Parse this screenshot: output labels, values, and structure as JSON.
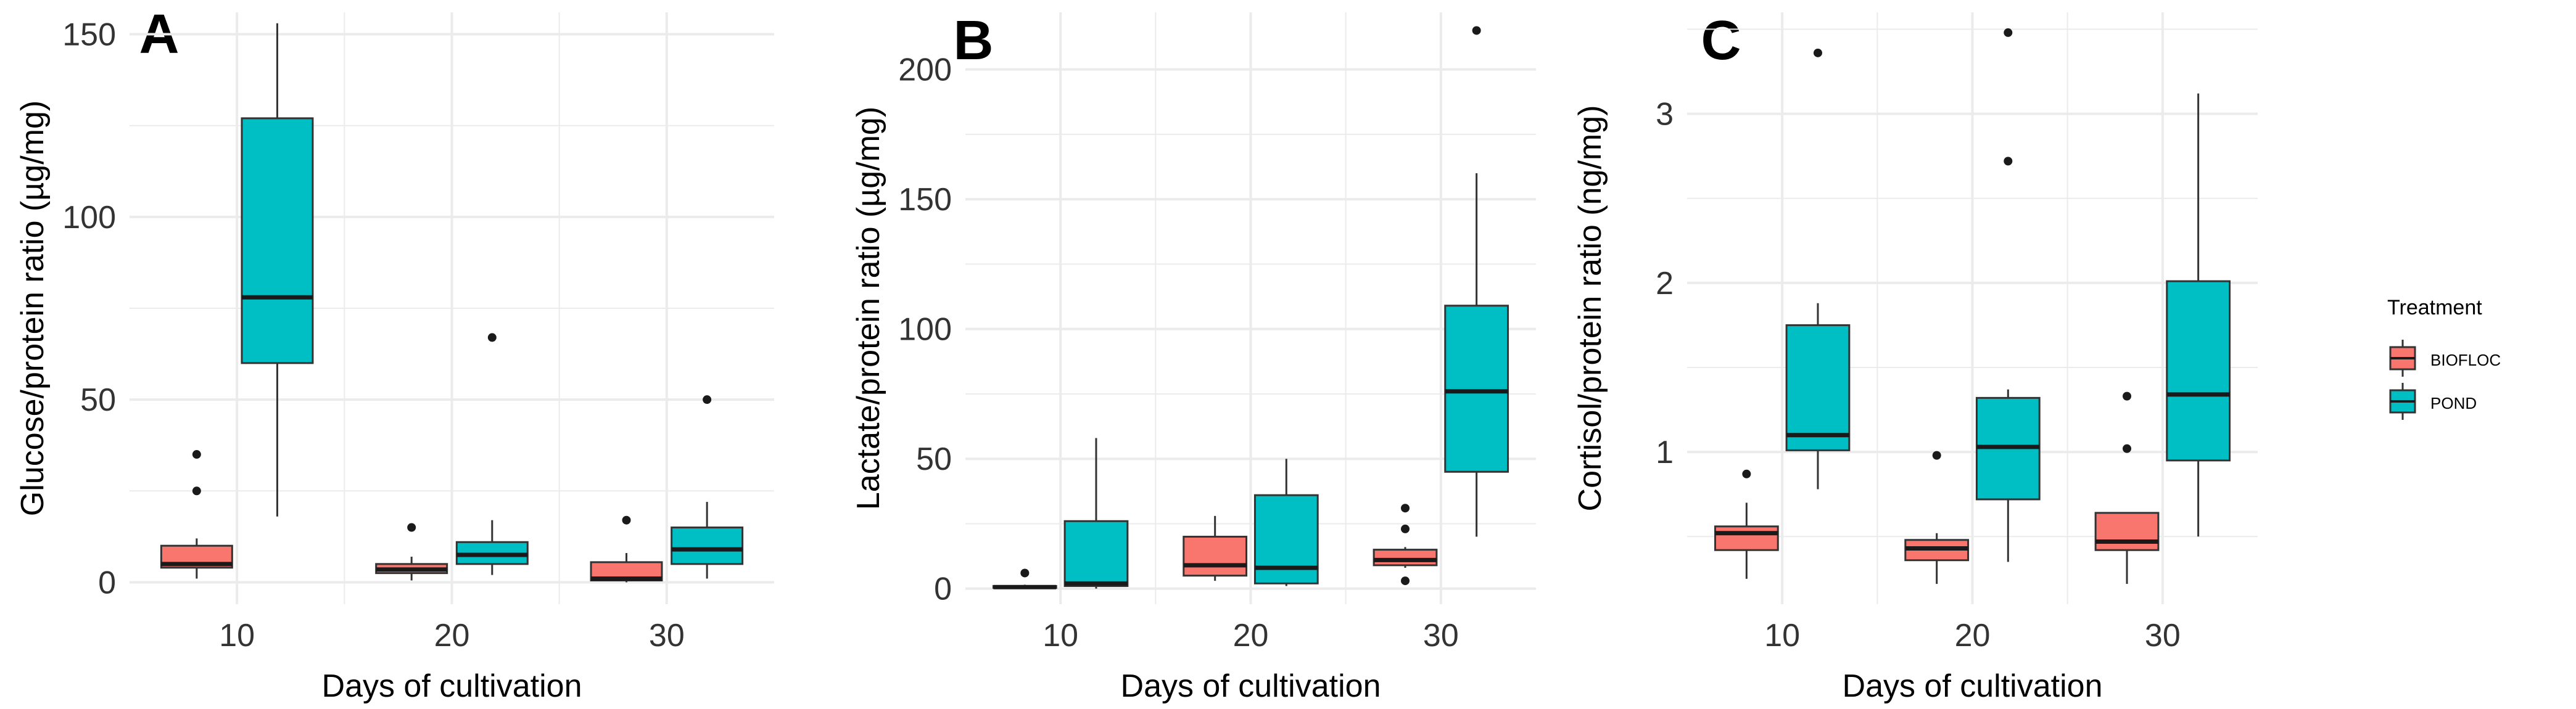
{
  "legend": {
    "title": "Treatment",
    "entries": [
      {
        "label": "BIOFLOC",
        "color": "#F8766D"
      },
      {
        "label": "POND",
        "color": "#00BFC4"
      }
    ],
    "placement": "right"
  },
  "colors": {
    "grid": "#EBEBEB",
    "median": "#1a1a1a",
    "whisker": "#333333"
  },
  "chart_data": [
    {
      "panel_label": "A",
      "type": "boxplot",
      "xlabel": "Days of cultivation",
      "ylabel": "Glucose/protein ratio (µg/mg)",
      "categories": [
        "10",
        "20",
        "30"
      ],
      "ylim": [
        -6,
        156
      ],
      "yticks": [
        0,
        50,
        100,
        150
      ],
      "series": [
        {
          "name": "BIOFLOC",
          "boxes": [
            {
              "whisker_low": 1,
              "q1": 4,
              "median": 5,
              "q3": 10,
              "whisker_high": 12,
              "outliers": [
                25,
                35
              ]
            },
            {
              "whisker_low": 0.5,
              "q1": 2.5,
              "median": 3.5,
              "q3": 5,
              "whisker_high": 7,
              "outliers": [
                15
              ]
            },
            {
              "whisker_low": 0,
              "q1": 0.5,
              "median": 1,
              "q3": 5.5,
              "whisker_high": 8,
              "outliers": [
                17
              ]
            }
          ]
        },
        {
          "name": "POND",
          "boxes": [
            {
              "whisker_low": 18,
              "q1": 60,
              "median": 78,
              "q3": 127,
              "whisker_high": 153,
              "outliers": []
            },
            {
              "whisker_low": 2,
              "q1": 5,
              "median": 7.5,
              "q3": 11,
              "whisker_high": 17,
              "outliers": [
                67
              ]
            },
            {
              "whisker_low": 1,
              "q1": 5,
              "median": 9,
              "q3": 15,
              "whisker_high": 22,
              "outliers": [
                50
              ]
            }
          ]
        }
      ]
    },
    {
      "panel_label": "B",
      "type": "boxplot",
      "xlabel": "Days of cultivation",
      "ylabel": "Lactate/protein ratio (µg/mg)",
      "categories": [
        "10",
        "20",
        "30"
      ],
      "ylim": [
        -6,
        222
      ],
      "yticks": [
        0,
        50,
        100,
        150,
        200
      ],
      "series": [
        {
          "name": "BIOFLOC",
          "boxes": [
            {
              "whisker_low": 0,
              "q1": 0.3,
              "median": 0.6,
              "q3": 1,
              "whisker_high": 1.5,
              "outliers": [
                6
              ]
            },
            {
              "whisker_low": 3,
              "q1": 5,
              "median": 9,
              "q3": 20,
              "whisker_high": 28,
              "outliers": []
            },
            {
              "whisker_low": 8,
              "q1": 9,
              "median": 11,
              "q3": 15,
              "whisker_high": 16,
              "outliers": [
                3,
                23,
                31
              ]
            }
          ]
        },
        {
          "name": "POND",
          "boxes": [
            {
              "whisker_low": 0,
              "q1": 1,
              "median": 2,
              "q3": 26,
              "whisker_high": 58,
              "outliers": []
            },
            {
              "whisker_low": 1,
              "q1": 2,
              "median": 8,
              "q3": 36,
              "whisker_high": 50,
              "outliers": []
            },
            {
              "whisker_low": 20,
              "q1": 45,
              "median": 76,
              "q3": 109,
              "whisker_high": 160,
              "outliers": [
                215
              ]
            }
          ]
        }
      ]
    },
    {
      "panel_label": "C",
      "type": "boxplot",
      "xlabel": "Days of cultivation",
      "ylabel": "Cortisol/protein ratio (ng/mg)",
      "categories": [
        "10",
        "20",
        "30"
      ],
      "ylim": [
        0.1,
        3.6
      ],
      "yticks": [
        1,
        2,
        3
      ],
      "series": [
        {
          "name": "BIOFLOC",
          "boxes": [
            {
              "whisker_low": 0.25,
              "q1": 0.42,
              "median": 0.52,
              "q3": 0.56,
              "whisker_high": 0.7,
              "outliers": [
                0.87
              ]
            },
            {
              "whisker_low": 0.22,
              "q1": 0.36,
              "median": 0.43,
              "q3": 0.48,
              "whisker_high": 0.52,
              "outliers": [
                0.98
              ]
            },
            {
              "whisker_low": 0.22,
              "q1": 0.42,
              "median": 0.47,
              "q3": 0.64,
              "whisker_high": 0.64,
              "outliers": [
                1.02,
                1.33
              ]
            }
          ]
        },
        {
          "name": "POND",
          "boxes": [
            {
              "whisker_low": 0.78,
              "q1": 1.01,
              "median": 1.1,
              "q3": 1.75,
              "whisker_high": 1.88,
              "outliers": [
                3.36
              ]
            },
            {
              "whisker_low": 0.35,
              "q1": 0.72,
              "median": 1.03,
              "q3": 1.32,
              "whisker_high": 1.37,
              "outliers": [
                2.72,
                3.48
              ]
            },
            {
              "whisker_low": 0.5,
              "q1": 0.95,
              "median": 1.34,
              "q3": 2.01,
              "whisker_high": 3.12,
              "outliers": []
            }
          ]
        }
      ]
    }
  ]
}
